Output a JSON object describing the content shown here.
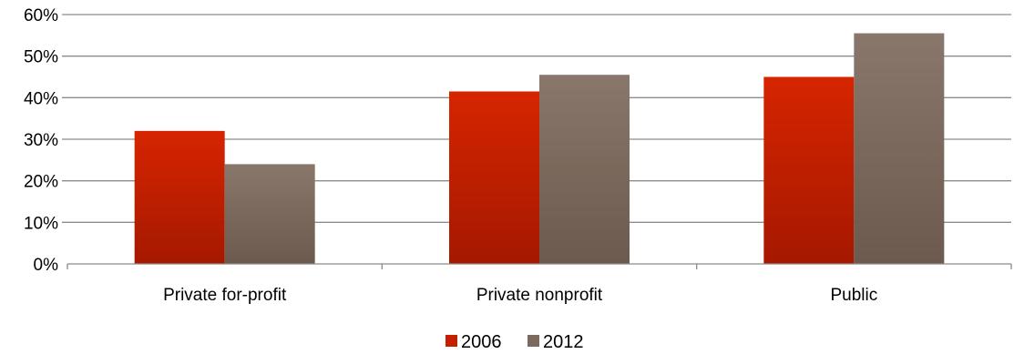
{
  "chart_data": {
    "type": "bar",
    "title": "",
    "xlabel": "",
    "ylabel": "",
    "categories": [
      "Private for-profit",
      "Private nonprofit",
      "Public"
    ],
    "series": [
      {
        "name": "2006",
        "values": [
          0.32,
          0.415,
          0.45
        ],
        "color": "#c42000"
      },
      {
        "name": "2012",
        "values": [
          0.24,
          0.455,
          0.555
        ],
        "color": "#7c6a5e"
      }
    ],
    "ylim": [
      0,
      0.6
    ],
    "yticks": [
      0,
      0.1,
      0.2,
      0.3,
      0.4,
      0.5,
      0.6
    ],
    "ytick_labels": [
      "0%",
      "10%",
      "20%",
      "30%",
      "40%",
      "50%",
      "60%"
    ],
    "grid": true,
    "legend_position": "bottom"
  }
}
